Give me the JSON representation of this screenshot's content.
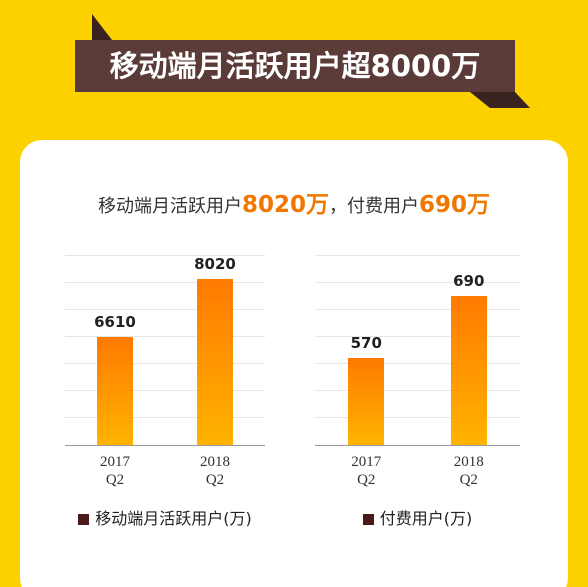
{
  "header": {
    "title": "移动端月活跃用户超8000万",
    "subtitle": [
      "移动端月活跃用户",
      "8020万",
      "，付费用户",
      "690万"
    ]
  },
  "chart_data": [
    {
      "type": "bar",
      "categories": [
        "2017 Q2",
        "2018 Q2"
      ],
      "series": [
        {
          "name": "移动端月活跃用户(万)",
          "color": "#4a1a1a",
          "values": [
            6610,
            8020
          ]
        }
      ],
      "ylim": [
        4000,
        8600
      ],
      "grid": true
    },
    {
      "type": "bar",
      "categories": [
        "2017 Q2",
        "2018 Q2"
      ],
      "series": [
        {
          "name": "付费用户(万)",
          "color": "#4a1a1a",
          "values": [
            570,
            690
          ]
        }
      ],
      "ylim": [
        400,
        770
      ],
      "grid": true
    }
  ]
}
